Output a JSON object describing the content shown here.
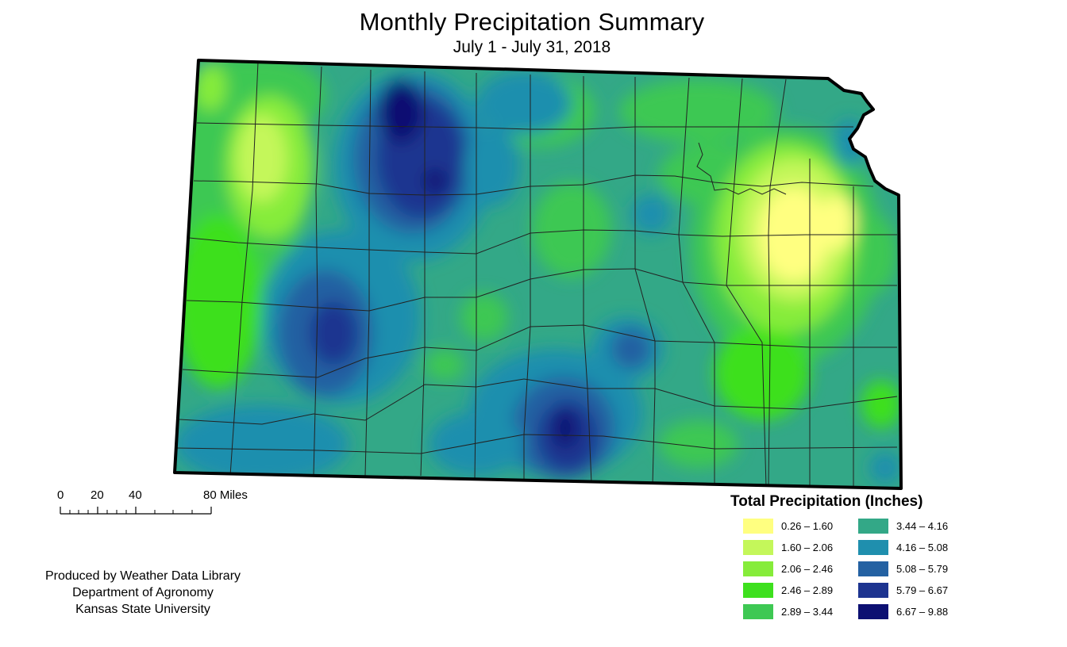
{
  "title": "Monthly Precipitation Summary",
  "subtitle": "July 1 - July 31, 2018",
  "scale_bar": {
    "labels": [
      "0",
      "20",
      "40",
      "80 Miles"
    ]
  },
  "credits": [
    "Produced by Weather Data Library",
    "Department of Agronomy",
    "Kansas State University"
  ],
  "legend": {
    "title": "Total Precipitation (Inches)",
    "classes": [
      {
        "range": "0.26 – 1.60",
        "color": "#ffff80"
      },
      {
        "range": "1.60 – 2.06",
        "color": "#c4f75a"
      },
      {
        "range": "2.06 – 2.46",
        "color": "#86ec3a"
      },
      {
        "range": "2.46 – 2.89",
        "color": "#3ee01e"
      },
      {
        "range": "2.89 – 3.44",
        "color": "#3ec853"
      },
      {
        "range": "3.44 – 4.16",
        "color": "#33a887"
      },
      {
        "range": "4.16 – 5.08",
        "color": "#1f8fae"
      },
      {
        "range": "5.08 – 5.79",
        "color": "#2461a2"
      },
      {
        "range": "5.79 – 6.67",
        "color": "#1d3490"
      },
      {
        "range": "6.67 – 9.88",
        "color": "#0c1072"
      }
    ]
  }
}
